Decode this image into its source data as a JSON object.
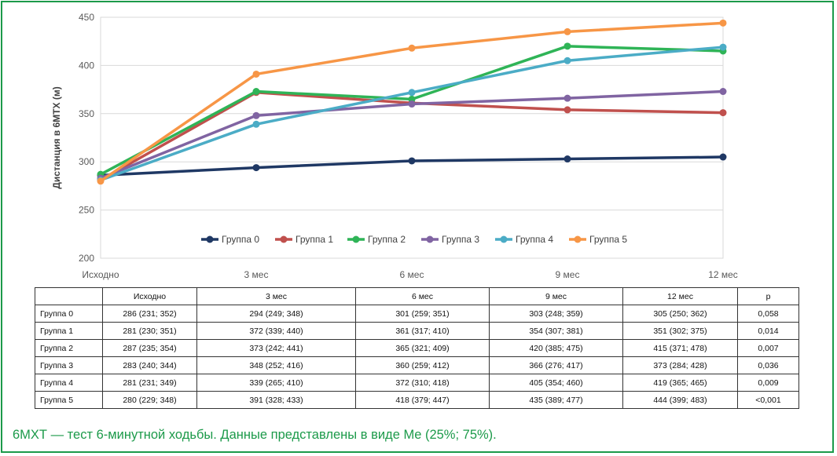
{
  "chart_data": {
    "type": "line",
    "categories": [
      "Исходно",
      "3 мес",
      "6 мес",
      "9 мес",
      "12 мес"
    ],
    "ylabel": "Дистанция в 6МТХ (м)",
    "ylim": [
      200,
      450
    ],
    "yticks": [
      200,
      250,
      300,
      350,
      400,
      450
    ],
    "grid": true,
    "legend_position": "bottom-inside",
    "series": [
      {
        "name": "Группа 0",
        "color": "#1f3864",
        "values": [
          286,
          294,
          301,
          303,
          305
        ]
      },
      {
        "name": "Группа 1",
        "color": "#c0504d",
        "values": [
          281,
          372,
          361,
          354,
          351
        ]
      },
      {
        "name": "Группа 2",
        "color": "#2fb457",
        "values": [
          287,
          373,
          365,
          420,
          415
        ]
      },
      {
        "name": "Группа 3",
        "color": "#8064a2",
        "values": [
          283,
          348,
          360,
          366,
          373
        ]
      },
      {
        "name": "Группа 4",
        "color": "#4bacc6",
        "values": [
          281,
          339,
          372,
          405,
          419
        ]
      },
      {
        "name": "Группа 5",
        "color": "#f79646",
        "values": [
          280,
          391,
          418,
          435,
          444
        ]
      }
    ]
  },
  "table": {
    "headers": [
      "",
      "Исходно",
      "3 мес",
      "6 мес",
      "9 мес",
      "12 мес",
      "p"
    ],
    "rows": [
      [
        "Группа 0",
        "286 (231; 352)",
        "294 (249; 348)",
        "301 (259; 351)",
        "303 (248; 359)",
        "305 (250; 362)",
        "0,058"
      ],
      [
        "Группа 1",
        "281 (230; 351)",
        "372 (339; 440)",
        "361 (317; 410)",
        "354 (307; 381)",
        "351 (302; 375)",
        "0,014"
      ],
      [
        "Группа 2",
        "287 (235; 354)",
        "373 (242; 441)",
        "365 (321; 409)",
        "420 (385; 475)",
        "415 (371; 478)",
        "0,007"
      ],
      [
        "Группа 3",
        "283 (240; 344)",
        "348 (252; 416)",
        "360 (259; 412)",
        "366 (276; 417)",
        "373 (284; 428)",
        "0,036"
      ],
      [
        "Группа 4",
        "281 (231; 349)",
        "339 (265; 410)",
        "372 (310; 418)",
        "405 (354; 460)",
        "419 (365; 465)",
        "0,009"
      ],
      [
        "Группа 5",
        "280 (229; 348)",
        "391 (328; 433)",
        "418 (379; 447)",
        "435 (389; 477)",
        "444 (399; 483)",
        "<0,001"
      ]
    ]
  },
  "caption": "6МХТ — тест 6-минутной ходьбы. Данные представлены в виде Me (25%; 75%)."
}
